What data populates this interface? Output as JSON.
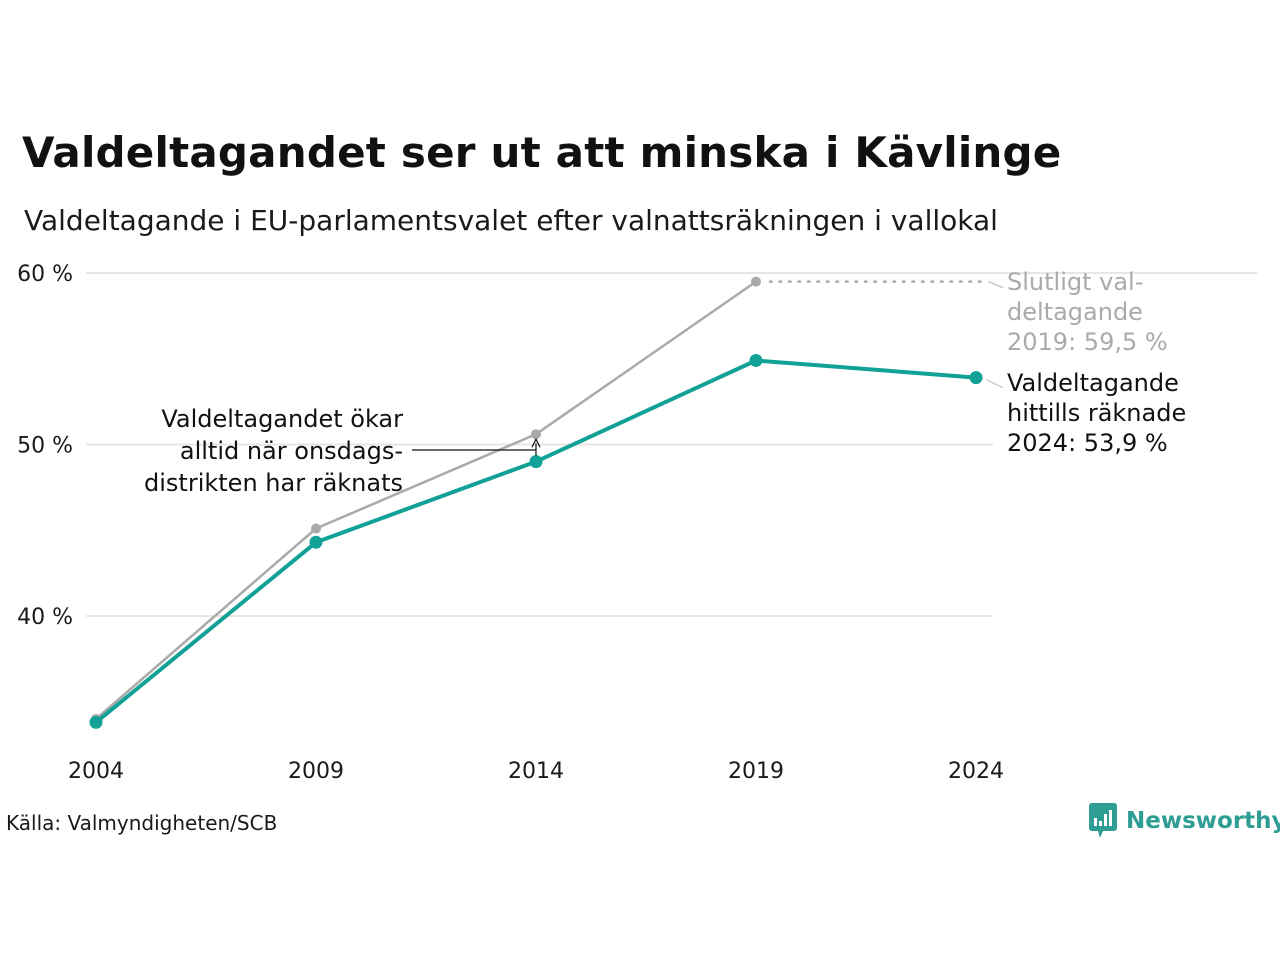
{
  "chart_data": {
    "type": "line",
    "title": "Valdeltagandet ser ut att minska i Kävlinge",
    "subtitle": "Valdeltagande i EU-parlamentsvalet efter valnattsräkningen i vallokal",
    "xlabel": "",
    "ylabel": "",
    "x": [
      2004,
      2009,
      2014,
      2019,
      2024
    ],
    "xlim": [
      2004,
      2024
    ],
    "ylim": [
      33.5,
      60
    ],
    "y_ticks": [
      "40 %",
      "50 %",
      "60 %"
    ],
    "x_ticks": [
      "2004",
      "2009",
      "2014",
      "2019",
      "2024"
    ],
    "grid": true,
    "series": [
      {
        "key": "final",
        "values": [
          34.0,
          45.1,
          50.6,
          59.5,
          null
        ],
        "color": "#aaaaaa"
      },
      {
        "key": "election_night",
        "values": [
          33.8,
          44.3,
          49.0,
          54.9,
          53.9
        ],
        "color": "#12a196"
      }
    ],
    "annotations": {
      "final_label": [
        "Slutligt val-",
        "deltagande",
        "2019: 59,5 %"
      ],
      "night_label": [
        "Valdeltagande",
        "hittills räknade",
        "2024: 53,9 %"
      ],
      "gap_note": [
        "Valdeltagandet ökar",
        "alltid när onsdags-",
        "distrikten har räknats"
      ]
    }
  },
  "footer": {
    "source": "Källa: Valmyndigheten/SCB",
    "brand": "Newsworthy",
    "brand_icon": "bar-chart-speech-bubble-icon"
  }
}
